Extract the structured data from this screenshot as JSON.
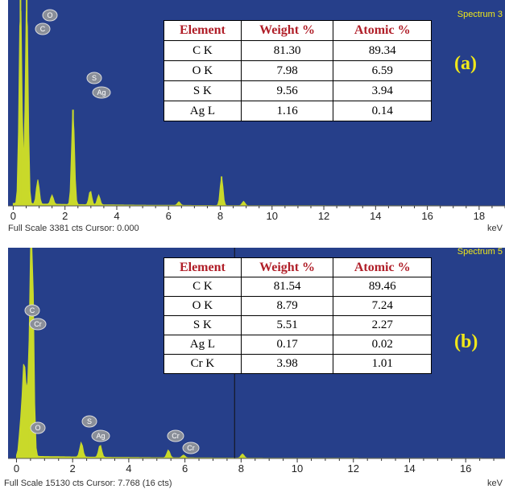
{
  "chart_data": [
    {
      "type": "line",
      "panel_label": "(a)",
      "spectrum_label": "Spectrum 3",
      "footer_scale": "Full Scale 3381 cts Cursor: 0.000",
      "xunit": "keV",
      "xlim": [
        -0.2,
        19
      ],
      "ylim": [
        0,
        3381
      ],
      "x_ticks": [
        "0",
        "2",
        "4",
        "6",
        "8",
        "10",
        "12",
        "14",
        "16",
        "18"
      ],
      "peaks": [
        {
          "x": 0.28,
          "y": 3381
        },
        {
          "x": 0.52,
          "y": 3381
        },
        {
          "x": 0.95,
          "y": 400
        },
        {
          "x": 1.5,
          "y": 150
        },
        {
          "x": 2.31,
          "y": 1580
        },
        {
          "x": 2.98,
          "y": 230
        },
        {
          "x": 3.3,
          "y": 160
        },
        {
          "x": 6.4,
          "y": 60
        },
        {
          "x": 8.05,
          "y": 480
        },
        {
          "x": 8.9,
          "y": 70
        }
      ],
      "peak_labels": [
        "O",
        "C",
        "S",
        "Ag"
      ],
      "table": {
        "headers": [
          "Element",
          "Weight %",
          "Atomic %"
        ],
        "rows": [
          [
            "C K",
            "81.30",
            "89.34"
          ],
          [
            "O K",
            "7.98",
            "6.59"
          ],
          [
            "S K",
            "9.56",
            "3.94"
          ],
          [
            "Ag L",
            "1.16",
            "0.14"
          ]
        ]
      }
    },
    {
      "type": "line",
      "panel_label": "(b)",
      "spectrum_label": "Spectrum 5",
      "footer_scale": "Full Scale 15130 cts Cursor: 7.768  (16 cts)",
      "xunit": "keV",
      "xlim": [
        -0.3,
        17.4
      ],
      "ylim": [
        0,
        15130
      ],
      "x_ticks": [
        "0",
        "2",
        "4",
        "6",
        "8",
        "10",
        "12",
        "14",
        "16"
      ],
      "cursor_x": 7.768,
      "peaks": [
        {
          "x": 0.15,
          "y": 2200
        },
        {
          "x": 0.27,
          "y": 6500
        },
        {
          "x": 0.52,
          "y": 11200
        },
        {
          "x": 0.57,
          "y": 9000
        },
        {
          "x": 0.4,
          "y": 3800
        },
        {
          "x": 2.31,
          "y": 1050
        },
        {
          "x": 2.98,
          "y": 900
        },
        {
          "x": 5.41,
          "y": 560
        },
        {
          "x": 5.95,
          "y": 210
        },
        {
          "x": 8.05,
          "y": 300
        }
      ],
      "peak_labels": [
        "C",
        "Cr",
        "O",
        "S",
        "Ag",
        "Cr",
        "Cr"
      ],
      "table": {
        "headers": [
          "Element",
          "Weight %",
          "Atomic %"
        ],
        "rows": [
          [
            "C K",
            "81.54",
            "89.46"
          ],
          [
            "O K",
            "8.79",
            "7.24"
          ],
          [
            "S K",
            "5.51",
            "2.27"
          ],
          [
            "Ag L",
            "0.17",
            "0.02"
          ],
          [
            "Cr K",
            "3.98",
            "1.01"
          ]
        ]
      }
    }
  ],
  "colors": {
    "plot_bg": "#263f8a",
    "spectrum": "#c9d92a",
    "badge": "#8a8f99",
    "text_yellow": "#f0e81a",
    "header_red": "#b01e28"
  }
}
